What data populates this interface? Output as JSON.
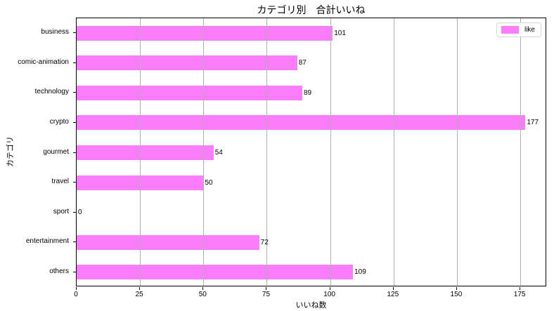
{
  "chart_data": {
    "type": "bar",
    "orientation": "horizontal",
    "title": "カテゴリ別　合計いいね",
    "xlabel": "いいね数",
    "ylabel": "カテゴリ",
    "categories": [
      "business",
      "comic-animation",
      "technology",
      "crypto",
      "gourmet",
      "travel",
      "sport",
      "entertainment",
      "others"
    ],
    "values": [
      101,
      87,
      89,
      177,
      54,
      50,
      0,
      72,
      109
    ],
    "value_labels": [
      "101",
      "87",
      "89",
      "177",
      "54",
      "50",
      "0",
      "72",
      "109"
    ],
    "xticks": [
      0,
      25,
      50,
      75,
      100,
      125,
      150,
      175
    ],
    "xlim": [
      0,
      185.5
    ],
    "grid": true,
    "legend": {
      "position": "upper right",
      "entries": [
        {
          "label": "like",
          "color": "#fb7dfb"
        }
      ]
    },
    "colors": {
      "bar": "#fb7dfb",
      "grid": "#b0b0b0",
      "spine": "#000000",
      "text": "#000000",
      "background": "#ffffff"
    }
  }
}
